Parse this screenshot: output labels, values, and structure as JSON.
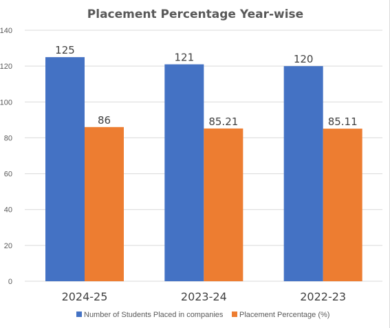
{
  "chart_data": {
    "type": "bar",
    "title": "Placement Percentage Year-wise",
    "xlabel": "",
    "ylabel": "",
    "categories": [
      "2024-25",
      "2023-24",
      "2022-23"
    ],
    "series": [
      {
        "name": "Number of Students Placed in companies",
        "values": [
          125,
          121,
          120
        ],
        "labels": [
          "125",
          "121",
          "120"
        ],
        "color": "#4472C4"
      },
      {
        "name": "Placement Percentage (%)",
        "values": [
          86,
          85.21,
          85.11
        ],
        "labels": [
          "86",
          "85.21",
          "85.11"
        ],
        "color": "#ED7D31"
      }
    ],
    "ylim": [
      0,
      140
    ],
    "yticks": [
      "0",
      "20",
      "40",
      "60",
      "80",
      "100",
      "120",
      "140"
    ],
    "grid": true,
    "legend_position": "bottom"
  }
}
